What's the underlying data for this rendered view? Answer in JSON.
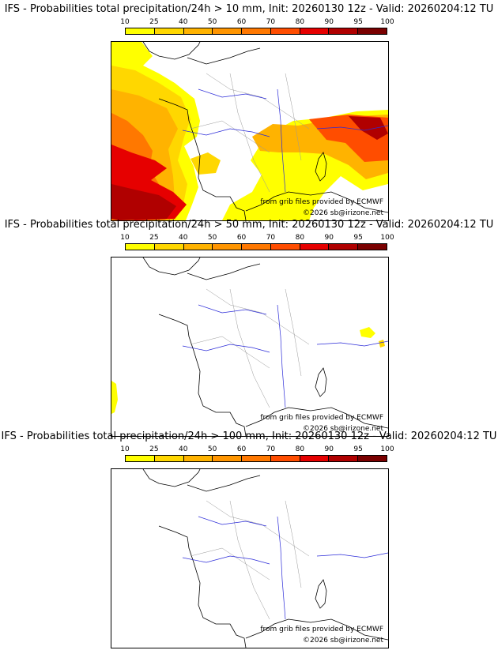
{
  "colorbar": {
    "ticks": [
      "10",
      "25",
      "40",
      "50",
      "60",
      "70",
      "80",
      "90",
      "95",
      "100"
    ],
    "colors": [
      "#ffff00",
      "#ffd700",
      "#ffb300",
      "#ff9500",
      "#ff7800",
      "#ff4d00",
      "#e60000",
      "#b00000",
      "#7a0000"
    ]
  },
  "panels": [
    {
      "title": "IFS - Probabilities total precipitation/24h > 10 mm, Init: 20260130 12z - Valid: 20260204:12 TU",
      "threshold": "10 mm",
      "source_text": "from grib files provided by ECMWF",
      "copyright_text": "©2026 sb@irizone.net"
    },
    {
      "title": "IFS - Probabilities total precipitation/24h > 50 mm, Init: 20260130 12z - Valid: 20260204:12 TU",
      "threshold": "50 mm",
      "source_text": "from grib files provided by ECMWF",
      "copyright_text": "©2026 sb@irizone.net"
    },
    {
      "title": "IFS - Probabilities total precipitation/24h > 100 mm, Init: 20260130 12z - Valid: 20260204:12 TU",
      "threshold": "100 mm",
      "source_text": "from grib files provided by ECMWF",
      "copyright_text": "©2026 sb@irizone.net"
    }
  ]
}
